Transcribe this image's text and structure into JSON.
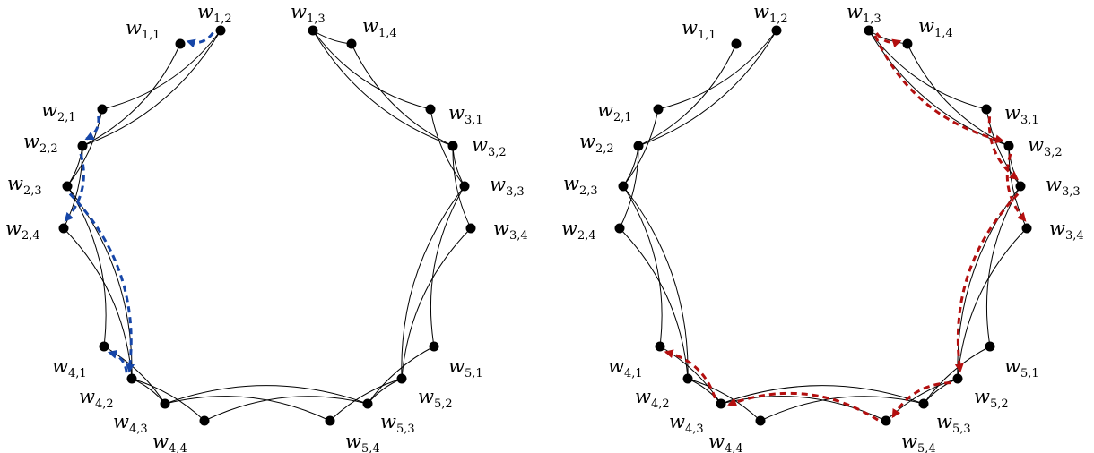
{
  "colors": {
    "path_left": "#1646a8",
    "path_right": "#b30f0f",
    "edge": "#000000"
  },
  "labels": {
    "w11": {
      "base": "w",
      "sub": "1,1"
    },
    "w12": {
      "base": "w",
      "sub": "1,2"
    },
    "w13": {
      "base": "w",
      "sub": "1,3"
    },
    "w14": {
      "base": "w",
      "sub": "1,4"
    },
    "w21": {
      "base": "w",
      "sub": "2,1"
    },
    "w22": {
      "base": "w",
      "sub": "2,2"
    },
    "w23": {
      "base": "w",
      "sub": "2,3"
    },
    "w24": {
      "base": "w",
      "sub": "2,4"
    },
    "w31": {
      "base": "w",
      "sub": "3,1"
    },
    "w32": {
      "base": "w",
      "sub": "3,2"
    },
    "w33": {
      "base": "w",
      "sub": "3,3"
    },
    "w34": {
      "base": "w",
      "sub": "3,4"
    },
    "w41": {
      "base": "w",
      "sub": "4,1"
    },
    "w42": {
      "base": "w",
      "sub": "4,2"
    },
    "w43": {
      "base": "w",
      "sub": "4,3"
    },
    "w44": {
      "base": "w",
      "sub": "4,4"
    },
    "w51": {
      "base": "w",
      "sub": "5,1"
    },
    "w52": {
      "base": "w",
      "sub": "5,2"
    },
    "w53": {
      "base": "w",
      "sub": "5,3"
    },
    "w54": {
      "base": "w",
      "sub": "5,4"
    }
  },
  "node_ids": [
    "w11",
    "w12",
    "w13",
    "w14",
    "w21",
    "w22",
    "w23",
    "w24",
    "w31",
    "w32",
    "w33",
    "w34",
    "w41",
    "w42",
    "w43",
    "w44",
    "w51",
    "w52",
    "w53",
    "w54"
  ],
  "edges": [
    [
      "w12",
      "w21"
    ],
    [
      "w12",
      "w22"
    ],
    [
      "w11",
      "w22"
    ],
    [
      "w21",
      "w23"
    ],
    [
      "w22",
      "w24"
    ],
    [
      "w22",
      "w23"
    ],
    [
      "w13",
      "w14"
    ],
    [
      "w13",
      "w31"
    ],
    [
      "w13",
      "w32"
    ],
    [
      "w14",
      "w32"
    ],
    [
      "w31",
      "w33"
    ],
    [
      "w32",
      "w34"
    ],
    [
      "w32",
      "w33"
    ],
    [
      "w23",
      "w41"
    ],
    [
      "w23",
      "w42"
    ],
    [
      "w24",
      "w42"
    ],
    [
      "w41",
      "w43"
    ],
    [
      "w42",
      "w44"
    ],
    [
      "w42",
      "w43"
    ],
    [
      "w33",
      "w51"
    ],
    [
      "w33",
      "w52"
    ],
    [
      "w34",
      "w52"
    ],
    [
      "w51",
      "w53"
    ],
    [
      "w52",
      "w54"
    ],
    [
      "w52",
      "w53"
    ],
    [
      "w43",
      "w53"
    ],
    [
      "w43",
      "w54"
    ],
    [
      "w44",
      "w53"
    ]
  ],
  "paths": {
    "left": [
      [
        "w12",
        "w11"
      ],
      [
        "w21",
        "w22"
      ],
      [
        "w22",
        "w24"
      ],
      [
        "w23",
        "w42"
      ],
      [
        "w42",
        "w41"
      ]
    ],
    "right": [
      [
        "w13",
        "w14"
      ],
      [
        "w13",
        "w32"
      ],
      [
        "w31",
        "w33"
      ],
      [
        "w32",
        "w34"
      ],
      [
        "w33",
        "w52"
      ],
      [
        "w52",
        "w54"
      ],
      [
        "w54",
        "w43"
      ],
      [
        "w43",
        "w41"
      ]
    ]
  }
}
